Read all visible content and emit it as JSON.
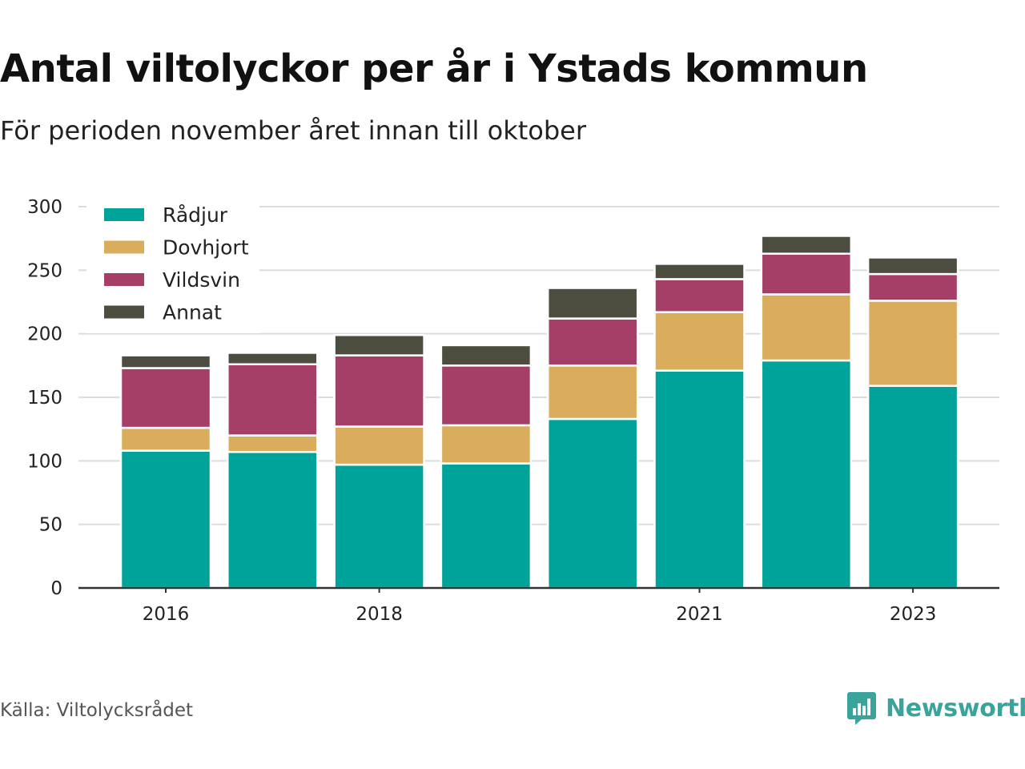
{
  "title": "Antal viltolyckor per år i Ystads kommun",
  "subtitle": "För perioden november året innan till oktober",
  "source": "Källa: Viltolycksrådet",
  "brand": {
    "name": "Newsworthy",
    "icon": "newsworthy-logo-icon",
    "color": "#3aa39b"
  },
  "chart_data": {
    "type": "bar",
    "stacked": true,
    "categories": [
      "2016",
      "2017",
      "2018",
      "2019",
      "2020",
      "2021",
      "2022",
      "2023"
    ],
    "x_tick_labels": [
      "2016",
      "",
      "2018",
      "",
      "",
      "2021",
      "",
      "2023"
    ],
    "series": [
      {
        "name": "Rådjur",
        "color": "#00a39a",
        "values": [
          108,
          107,
          97,
          98,
          133,
          171,
          179,
          159
        ]
      },
      {
        "name": "Dovhjort",
        "color": "#d9ad5c",
        "values": [
          18,
          13,
          30,
          30,
          42,
          46,
          52,
          67
        ]
      },
      {
        "name": "Vildsvin",
        "color": "#a53f68",
        "values": [
          47,
          56,
          56,
          47,
          37,
          26,
          32,
          21
        ]
      },
      {
        "name": "Annat",
        "color": "#4d4d3f",
        "values": [
          10,
          9,
          16,
          16,
          24,
          12,
          14,
          13
        ]
      }
    ],
    "ylim": [
      0,
      300
    ],
    "yticks": [
      0,
      50,
      100,
      150,
      200,
      250,
      300
    ],
    "xlabel": "",
    "ylabel": "",
    "grid": true,
    "legend": "top-left"
  }
}
